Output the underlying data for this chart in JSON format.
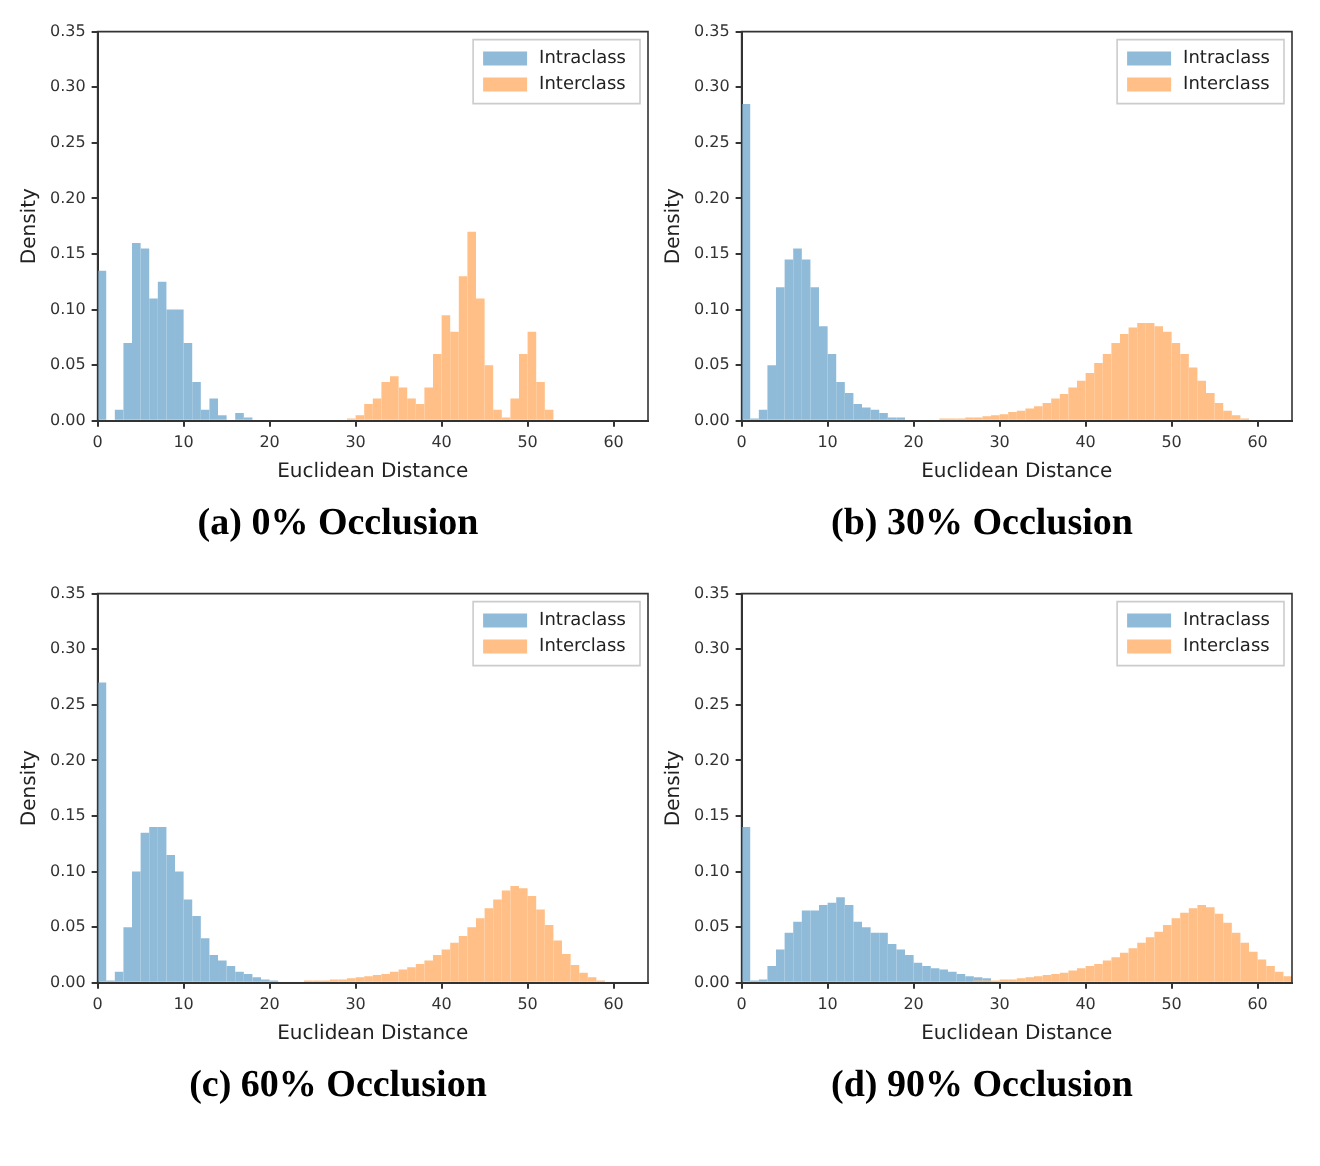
{
  "chart_data": [
    {
      "type": "histogram",
      "title": "(a) 0% Occlusion",
      "xlabel": "Euclidean Distance",
      "ylabel": "Density",
      "legend": "top right",
      "bins": [
        0,
        1,
        2,
        3,
        4,
        5,
        6,
        7,
        8,
        9,
        10,
        11,
        12,
        13,
        14,
        15,
        16,
        17,
        18,
        19,
        20,
        21,
        22,
        23,
        24,
        25,
        26,
        27,
        28,
        29,
        30,
        31,
        32,
        33,
        34,
        35,
        36,
        37,
        38,
        39,
        40,
        41,
        42,
        43,
        44,
        45,
        46,
        47,
        48,
        49,
        50,
        51,
        52,
        53,
        54,
        55,
        56,
        57,
        58,
        59,
        60,
        61,
        62,
        63,
        64
      ],
      "xlim": [
        0,
        64
      ],
      "xticks": [
        0,
        10,
        20,
        30,
        40,
        50,
        60
      ],
      "ylim": [
        0,
        0.35
      ],
      "yticks": [
        {
          "value": 0,
          "label": "0.00"
        },
        {
          "value": 0.05,
          "label": "0.05"
        },
        {
          "value": 0.1,
          "label": "0.10"
        },
        {
          "value": 0.15,
          "label": "0.15"
        },
        {
          "value": 0.2,
          "label": "0.20"
        },
        {
          "value": 0.25,
          "label": "0.25"
        },
        {
          "value": 0.3,
          "label": "0.30"
        },
        {
          "value": 0.35,
          "label": "0.35"
        }
      ],
      "series": [
        {
          "name": "Intraclass",
          "color": "#8fbbd9",
          "values": [
            0.135,
            0,
            0.01,
            0.07,
            0.16,
            0.155,
            0.11,
            0.125,
            0.1,
            0.1,
            0.07,
            0.035,
            0.01,
            0.02,
            0.005,
            0,
            0.007,
            0.003,
            null,
            null,
            null,
            null,
            null,
            null,
            null,
            null,
            null,
            null,
            null,
            null,
            null,
            null,
            null,
            null,
            null,
            null,
            null,
            null,
            null,
            null,
            null,
            null,
            null,
            null,
            null,
            null,
            null,
            null,
            null,
            null,
            null,
            null,
            null,
            null,
            null,
            null,
            null,
            null,
            null,
            null,
            null,
            null,
            null,
            null
          ]
        },
        {
          "name": "Interclass",
          "color": "#ffbf86",
          "values": [
            null,
            null,
            null,
            null,
            null,
            null,
            null,
            null,
            null,
            null,
            null,
            null,
            null,
            null,
            null,
            null,
            null,
            null,
            null,
            null,
            null,
            null,
            null,
            null,
            null,
            null,
            null,
            null,
            null,
            0.002,
            0.005,
            0.015,
            0.02,
            0.035,
            0.04,
            0.03,
            0.02,
            0.015,
            0.03,
            0.06,
            0.095,
            0.08,
            0.13,
            0.17,
            0.11,
            0.05,
            0.01,
            0.003,
            0.02,
            0.06,
            0.08,
            0.035,
            0.01,
            null,
            null,
            null,
            null,
            null,
            null,
            null,
            null,
            null,
            null,
            null
          ]
        }
      ]
    },
    {
      "type": "histogram",
      "title": "(b) 30% Occlusion",
      "xlabel": "Euclidean Distance",
      "ylabel": "Density",
      "legend": "top right",
      "bins": [
        0,
        1,
        2,
        3,
        4,
        5,
        6,
        7,
        8,
        9,
        10,
        11,
        12,
        13,
        14,
        15,
        16,
        17,
        18,
        19,
        20,
        21,
        22,
        23,
        24,
        25,
        26,
        27,
        28,
        29,
        30,
        31,
        32,
        33,
        34,
        35,
        36,
        37,
        38,
        39,
        40,
        41,
        42,
        43,
        44,
        45,
        46,
        47,
        48,
        49,
        50,
        51,
        52,
        53,
        54,
        55,
        56,
        57,
        58,
        59,
        60,
        61,
        62,
        63,
        64
      ],
      "xlim": [
        0,
        64
      ],
      "xticks": [
        0,
        10,
        20,
        30,
        40,
        50,
        60
      ],
      "ylim": [
        0,
        0.35
      ],
      "yticks": [
        {
          "value": 0,
          "label": "0.00"
        },
        {
          "value": 0.05,
          "label": "0.05"
        },
        {
          "value": 0.1,
          "label": "0.10"
        },
        {
          "value": 0.15,
          "label": "0.15"
        },
        {
          "value": 0.2,
          "label": "0.20"
        },
        {
          "value": 0.25,
          "label": "0.25"
        },
        {
          "value": 0.3,
          "label": "0.30"
        },
        {
          "value": 0.35,
          "label": "0.35"
        }
      ],
      "series": [
        {
          "name": "Intraclass",
          "color": "#8fbbd9",
          "values": [
            0.285,
            0.002,
            0.01,
            0.05,
            0.12,
            0.145,
            0.155,
            0.145,
            0.12,
            0.085,
            0.06,
            0.035,
            0.025,
            0.015,
            0.012,
            0.01,
            0.007,
            0.003,
            0.003,
            null,
            null,
            null,
            null,
            null,
            null,
            null,
            null,
            null,
            null,
            null,
            null,
            null,
            null,
            null,
            null,
            null,
            null,
            null,
            null,
            null,
            null,
            null,
            null,
            null,
            null,
            null,
            null,
            null,
            null,
            null,
            null,
            null,
            null,
            null,
            null,
            null,
            null,
            null,
            null,
            null,
            null,
            null,
            null,
            null
          ]
        },
        {
          "name": "Interclass",
          "color": "#ffbf86",
          "values": [
            null,
            null,
            null,
            null,
            null,
            null,
            null,
            null,
            null,
            null,
            null,
            null,
            null,
            null,
            null,
            null,
            null,
            null,
            null,
            null,
            0.001,
            0.001,
            0.001,
            0.002,
            0.002,
            0.002,
            0.003,
            0.003,
            0.004,
            0.005,
            0.006,
            0.008,
            0.009,
            0.011,
            0.013,
            0.016,
            0.02,
            0.024,
            0.03,
            0.036,
            0.043,
            0.052,
            0.06,
            0.07,
            0.078,
            0.084,
            0.088,
            0.088,
            0.085,
            0.08,
            0.07,
            0.06,
            0.048,
            0.036,
            0.025,
            0.016,
            0.009,
            0.005,
            0.002,
            0.001,
            null,
            null,
            null,
            null
          ]
        }
      ]
    },
    {
      "type": "histogram",
      "title": "(c) 60% Occlusion",
      "xlabel": "Euclidean Distance",
      "ylabel": "Density",
      "legend": "top right",
      "bins": [
        0,
        1,
        2,
        3,
        4,
        5,
        6,
        7,
        8,
        9,
        10,
        11,
        12,
        13,
        14,
        15,
        16,
        17,
        18,
        19,
        20,
        21,
        22,
        23,
        24,
        25,
        26,
        27,
        28,
        29,
        30,
        31,
        32,
        33,
        34,
        35,
        36,
        37,
        38,
        39,
        40,
        41,
        42,
        43,
        44,
        45,
        46,
        47,
        48,
        49,
        50,
        51,
        52,
        53,
        54,
        55,
        56,
        57,
        58,
        59,
        60,
        61,
        62,
        63,
        64
      ],
      "xlim": [
        0,
        64
      ],
      "xticks": [
        0,
        10,
        20,
        30,
        40,
        50,
        60
      ],
      "ylim": [
        0,
        0.35
      ],
      "yticks": [
        {
          "value": 0,
          "label": "0.00"
        },
        {
          "value": 0.05,
          "label": "0.05"
        },
        {
          "value": 0.1,
          "label": "0.10"
        },
        {
          "value": 0.15,
          "label": "0.15"
        },
        {
          "value": 0.2,
          "label": "0.20"
        },
        {
          "value": 0.25,
          "label": "0.25"
        },
        {
          "value": 0.3,
          "label": "0.30"
        },
        {
          "value": 0.35,
          "label": "0.35"
        }
      ],
      "series": [
        {
          "name": "Intraclass",
          "color": "#8fbbd9",
          "values": [
            0.27,
            0.002,
            0.01,
            0.05,
            0.1,
            0.135,
            0.14,
            0.14,
            0.115,
            0.1,
            0.075,
            0.06,
            0.04,
            0.025,
            0.02,
            0.015,
            0.01,
            0.008,
            0.005,
            0.003,
            0.002,
            null,
            null,
            null,
            null,
            null,
            null,
            null,
            null,
            null,
            null,
            null,
            null,
            null,
            null,
            null,
            null,
            null,
            null,
            null,
            null,
            null,
            null,
            null,
            null,
            null,
            null,
            null,
            null,
            null,
            null,
            null,
            null,
            null,
            null,
            null,
            null,
            null,
            null,
            null,
            null,
            null,
            null,
            null
          ]
        },
        {
          "name": "Interclass",
          "color": "#ffbf86",
          "values": [
            null,
            null,
            null,
            null,
            null,
            null,
            null,
            null,
            null,
            null,
            null,
            null,
            null,
            null,
            null,
            null,
            null,
            null,
            null,
            null,
            null,
            0.001,
            0.001,
            0.001,
            0.002,
            0.002,
            0.002,
            0.003,
            0.003,
            0.004,
            0.005,
            0.006,
            0.007,
            0.008,
            0.01,
            0.012,
            0.014,
            0.017,
            0.02,
            0.025,
            0.03,
            0.036,
            0.042,
            0.05,
            0.058,
            0.067,
            0.075,
            0.083,
            0.087,
            0.085,
            0.078,
            0.066,
            0.052,
            0.038,
            0.026,
            0.016,
            0.009,
            0.005,
            0.002,
            0.001,
            null,
            null,
            null,
            null
          ]
        }
      ]
    },
    {
      "type": "histogram",
      "title": "(d) 90% Occlusion",
      "xlabel": "Euclidean Distance",
      "ylabel": "Density",
      "legend": "top right",
      "bins": [
        0,
        1,
        2,
        3,
        4,
        5,
        6,
        7,
        8,
        9,
        10,
        11,
        12,
        13,
        14,
        15,
        16,
        17,
        18,
        19,
        20,
        21,
        22,
        23,
        24,
        25,
        26,
        27,
        28,
        29,
        30,
        31,
        32,
        33,
        34,
        35,
        36,
        37,
        38,
        39,
        40,
        41,
        42,
        43,
        44,
        45,
        46,
        47,
        48,
        49,
        50,
        51,
        52,
        53,
        54,
        55,
        56,
        57,
        58,
        59,
        60,
        61,
        62,
        63,
        64
      ],
      "xlim": [
        0,
        64
      ],
      "xticks": [
        0,
        10,
        20,
        30,
        40,
        50,
        60
      ],
      "ylim": [
        0,
        0.35
      ],
      "yticks": [
        {
          "value": 0,
          "label": "0.00"
        },
        {
          "value": 0.05,
          "label": "0.05"
        },
        {
          "value": 0.1,
          "label": "0.10"
        },
        {
          "value": 0.15,
          "label": "0.15"
        },
        {
          "value": 0.2,
          "label": "0.20"
        },
        {
          "value": 0.25,
          "label": "0.25"
        },
        {
          "value": 0.3,
          "label": "0.30"
        },
        {
          "value": 0.35,
          "label": "0.35"
        }
      ],
      "series": [
        {
          "name": "Intraclass",
          "color": "#8fbbd9",
          "values": [
            0.14,
            0.002,
            0.003,
            0.015,
            0.03,
            0.045,
            0.055,
            0.065,
            0.065,
            0.07,
            0.072,
            0.077,
            0.07,
            0.055,
            0.05,
            0.045,
            0.045,
            0.035,
            0.03,
            0.025,
            0.018,
            0.015,
            0.013,
            0.012,
            0.01,
            0.008,
            0.006,
            0.005,
            0.004,
            null,
            null,
            null,
            null,
            null,
            null,
            null,
            null,
            null,
            null,
            null,
            null,
            null,
            null,
            null,
            null,
            null,
            null,
            null,
            null,
            null,
            null,
            null,
            null,
            null,
            null,
            null,
            null,
            null,
            null,
            null,
            null,
            null,
            null,
            null
          ]
        },
        {
          "name": "Interclass",
          "color": "#ffbf86",
          "values": [
            null,
            null,
            null,
            null,
            null,
            null,
            null,
            null,
            null,
            null,
            null,
            null,
            null,
            null,
            null,
            null,
            null,
            null,
            null,
            null,
            null,
            null,
            null,
            null,
            null,
            0.001,
            0.001,
            0.002,
            0.002,
            0.002,
            0.003,
            0.003,
            0.004,
            0.005,
            0.006,
            0.007,
            0.008,
            0.009,
            0.011,
            0.013,
            0.015,
            0.017,
            0.02,
            0.023,
            0.027,
            0.031,
            0.036,
            0.041,
            0.046,
            0.052,
            0.058,
            0.063,
            0.067,
            0.07,
            0.068,
            0.062,
            0.054,
            0.045,
            0.036,
            0.028,
            0.021,
            0.015,
            0.01,
            0.006
          ]
        }
      ]
    }
  ]
}
